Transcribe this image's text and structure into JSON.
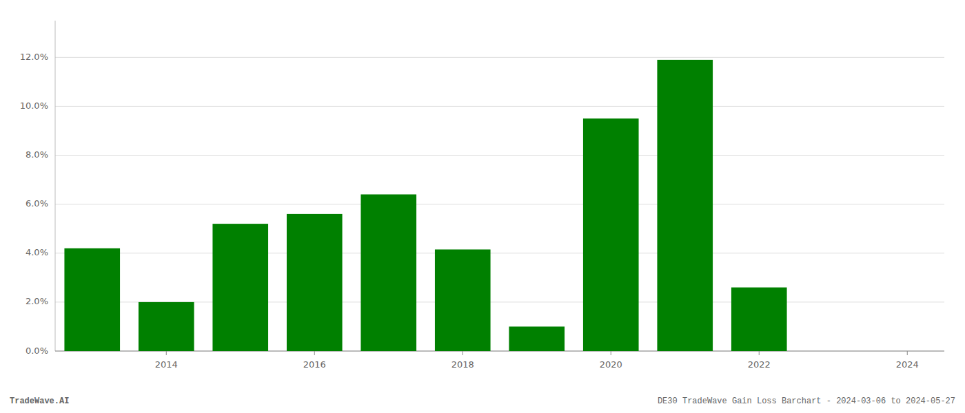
{
  "chart_data": {
    "type": "bar",
    "x": [
      2013,
      2014,
      2015,
      2016,
      2017,
      2018,
      2019,
      2020,
      2021,
      2022,
      2023
    ],
    "values": [
      0.042,
      0.02,
      0.052,
      0.056,
      0.064,
      0.0415,
      0.01,
      0.095,
      0.119,
      0.026,
      0.0
    ],
    "color": "#008000",
    "ylim": [
      0,
      0.135
    ],
    "yticks": [
      {
        "value": 0.0,
        "label": "0.0%"
      },
      {
        "value": 0.02,
        "label": "2.0%"
      },
      {
        "value": 0.04,
        "label": "4.0%"
      },
      {
        "value": 0.06,
        "label": "6.0%"
      },
      {
        "value": 0.08,
        "label": "8.0%"
      },
      {
        "value": 0.1,
        "label": "10.0%"
      },
      {
        "value": 0.12,
        "label": "12.0%"
      }
    ],
    "xlim": [
      2012.5,
      2024.5
    ],
    "xticks": [
      2014,
      2016,
      2018,
      2020,
      2022,
      2024
    ],
    "grid": true,
    "annotations": [
      "TradeWave.AI",
      "DE30 TradeWave Gain Loss Barchart - 2024-03-06 to 2024-05-27"
    ]
  }
}
